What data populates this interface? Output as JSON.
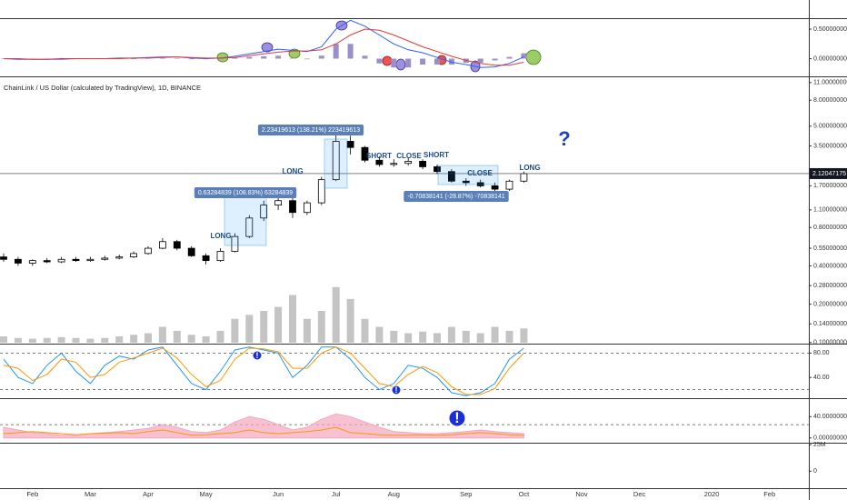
{
  "x_axis": {
    "categories": [
      null,
      null,
      "Feb",
      null,
      null,
      null,
      "Mar",
      null,
      null,
      null,
      "Apr",
      null,
      null,
      null,
      "May",
      null,
      null,
      null,
      null,
      "Jun",
      null,
      null,
      null,
      "Jul",
      null,
      null,
      null,
      "Aug",
      null,
      null,
      null,
      null,
      "Sep",
      null,
      null,
      null,
      "Oct",
      null,
      null,
      null,
      "Nov",
      null,
      null,
      null,
      "Dec",
      null,
      null,
      null,
      null,
      "2020",
      null,
      null,
      null,
      "Feb",
      null,
      null
    ]
  },
  "chart_data": [
    {
      "type": "macd",
      "ylim": [
        -0.3,
        0.67
      ],
      "yticks": [
        {
          "value": 0.5,
          "label": "0.50000000"
        },
        {
          "value": 0,
          "label": "0.00000000"
        }
      ],
      "series": [
        {
          "kind": "histogram",
          "color": "#9b8fc9",
          "values": [
            0,
            -0.01,
            0,
            0,
            0.01,
            0,
            0,
            0,
            0.01,
            0,
            0.01,
            0.01,
            0,
            -0.01,
            -0.01,
            0,
            0.02,
            0.03,
            0.04,
            0.05,
            0.01,
            -0.01,
            0.05,
            0.25,
            0.25,
            0.05,
            -0.08,
            -0.15,
            -0.15,
            -0.1,
            -0.1,
            -0.1,
            -0.07,
            -0.07,
            -0.03,
            0.03,
            0.09,
            null,
            null,
            null,
            null,
            null,
            null,
            null,
            null,
            null,
            null,
            null,
            null,
            null,
            null,
            null,
            null,
            null,
            null,
            null
          ]
        },
        {
          "kind": "line",
          "color": "#2962ff",
          "values": [
            0,
            -0.01,
            -0.01,
            -0.01,
            0,
            0,
            0,
            0,
            0.01,
            0.01,
            0.02,
            0.03,
            0.03,
            0.01,
            0,
            0.01,
            0.04,
            0.08,
            0.12,
            0.16,
            0.14,
            0.12,
            0.2,
            0.5,
            0.65,
            0.55,
            0.4,
            0.25,
            0.15,
            0.1,
            0.02,
            -0.06,
            -0.1,
            -0.15,
            -0.14,
            -0.08,
            0.03,
            null,
            null,
            null,
            null,
            null,
            null,
            null,
            null,
            null,
            null,
            null,
            null,
            null,
            null,
            null,
            null,
            null,
            null,
            null
          ]
        },
        {
          "kind": "line",
          "color": "#e53935",
          "values": [
            0,
            0,
            -0.01,
            -0.01,
            -0.01,
            0,
            0,
            0,
            0,
            0.01,
            0.01,
            0.02,
            0.03,
            0.02,
            0.01,
            0.01,
            0.02,
            0.05,
            0.08,
            0.11,
            0.13,
            0.13,
            0.15,
            0.25,
            0.4,
            0.5,
            0.48,
            0.4,
            0.3,
            0.2,
            0.12,
            0.04,
            -0.03,
            -0.08,
            -0.11,
            -0.11,
            -0.06,
            null,
            null,
            null,
            null,
            null,
            null,
            null,
            null,
            null,
            null,
            null,
            null,
            null,
            null,
            null,
            null,
            null,
            null,
            null
          ]
        }
      ]
    },
    {
      "type": "candlestick",
      "title": "ChainLink / US Dollar (calculated by TradingView), 1D, BINANCE",
      "log_scale": true,
      "ylim": [
        0.098,
        12.1
      ],
      "yticks": [
        {
          "value": 11,
          "label": "11.00000000"
        },
        {
          "value": 8,
          "label": "8.00000000"
        },
        {
          "value": 5,
          "label": "5.00000000"
        },
        {
          "value": 3.5,
          "label": "3.50000000"
        },
        {
          "value": 1.7,
          "label": "1.70000000"
        },
        {
          "value": 1.1,
          "label": "1.10000000"
        },
        {
          "value": 0.8,
          "label": "0.80000000"
        },
        {
          "value": 0.55,
          "label": "0.55000000"
        },
        {
          "value": 0.4,
          "label": "0.40000000"
        },
        {
          "value": 0.28,
          "label": "0.28000000"
        },
        {
          "value": 0.2,
          "label": "0.20000000"
        },
        {
          "value": 0.14,
          "label": "0.14000000"
        },
        {
          "value": 0.1,
          "label": "0.10000000"
        }
      ],
      "color_up": "#ffffff",
      "color_down": "#000000",
      "open": [
        0.47,
        0.45,
        0.42,
        0.44,
        0.43,
        0.45,
        0.44,
        0.45,
        0.46,
        0.47,
        0.5,
        0.55,
        0.62,
        0.55,
        0.48,
        0.44,
        0.52,
        0.68,
        0.95,
        1.2,
        1.3,
        1.05,
        1.25,
        1.9,
        3.8,
        3.4,
        2.7,
        2.5,
        2.55,
        2.65,
        2.4,
        2.2,
        1.85,
        1.8,
        1.7,
        1.6,
        1.85,
        null,
        null,
        null,
        null,
        null,
        null,
        null,
        null,
        null,
        null,
        null,
        null,
        null,
        null,
        null,
        null,
        null,
        null,
        null
      ],
      "high": [
        0.5,
        0.47,
        0.45,
        0.46,
        0.47,
        0.47,
        0.47,
        0.48,
        0.49,
        0.52,
        0.57,
        0.66,
        0.64,
        0.57,
        0.5,
        0.55,
        0.72,
        1,
        1.3,
        1.5,
        1.4,
        1.3,
        2,
        4.4,
        4.2,
        3.5,
        2.9,
        2.75,
        2.8,
        2.75,
        2.5,
        2.3,
        1.95,
        1.9,
        1.8,
        1.9,
        2.2,
        null,
        null,
        null,
        null,
        null,
        null,
        null,
        null,
        null,
        null,
        null,
        null,
        null,
        null,
        null,
        null,
        null,
        null,
        null
      ],
      "low": [
        0.43,
        0.4,
        0.4,
        0.42,
        0.42,
        0.43,
        0.43,
        0.44,
        0.45,
        0.46,
        0.49,
        0.54,
        0.53,
        0.47,
        0.41,
        0.43,
        0.51,
        0.66,
        0.9,
        1.1,
        0.95,
        1,
        1.2,
        1.85,
        3,
        2.6,
        2.4,
        2.4,
        2.45,
        2.3,
        2.1,
        1.8,
        1.7,
        1.65,
        1.5,
        1.55,
        1.8,
        null,
        null,
        null,
        null,
        null,
        null,
        null,
        null,
        null,
        null,
        null,
        null,
        null,
        null,
        null,
        null,
        null,
        null,
        null
      ],
      "close": [
        0.45,
        0.42,
        0.44,
        0.43,
        0.45,
        0.44,
        0.45,
        0.46,
        0.47,
        0.5,
        0.55,
        0.62,
        0.55,
        0.48,
        0.44,
        0.52,
        0.68,
        0.95,
        1.2,
        1.3,
        1.05,
        1.25,
        1.9,
        3.8,
        3.4,
        2.7,
        2.5,
        2.55,
        2.65,
        2.4,
        2.2,
        1.85,
        1.8,
        1.7,
        1.6,
        1.85,
        2.12,
        null,
        null,
        null,
        null,
        null,
        null,
        null,
        null,
        null,
        null,
        null,
        null,
        null,
        null,
        null,
        null,
        null,
        null,
        null
      ],
      "volume": {
        "color": "#b5b5b5",
        "ylim": [
          0,
          80000000
        ],
        "values": [
          8000000,
          6000000,
          5000000,
          6000000,
          7000000,
          6000000,
          5000000,
          6000000,
          8000000,
          10000000,
          12000000,
          20000000,
          15000000,
          10000000,
          8000000,
          15000000,
          30000000,
          35000000,
          40000000,
          45000000,
          60000000,
          30000000,
          40000000,
          70000000,
          55000000,
          30000000,
          20000000,
          15000000,
          12000000,
          14000000,
          12000000,
          20000000,
          15000000,
          12000000,
          20000000,
          15000000,
          18000000,
          null,
          null,
          null,
          null,
          null,
          null,
          null,
          null,
          null,
          null,
          null,
          null,
          null,
          null,
          null,
          null,
          null,
          null,
          null
        ]
      },
      "last_price": 2.12047175,
      "annotations": [
        "LONG",
        "LONG",
        "SHORT",
        "CLOSE",
        "SHORT",
        "CLOSE",
        "LONG",
        "?"
      ],
      "measurements": [
        "0.63284839 (108.83%) 63284839",
        "2.23419613 (138.21%) 223419613",
        "-0.70838141 (-28.87%) -70838141"
      ]
    },
    {
      "type": "line",
      "ylim": [
        6,
        94
      ],
      "yticks": [
        {
          "value": 80,
          "label": "80.00"
        },
        {
          "value": 40,
          "label": "40.00"
        }
      ],
      "bands": [
        80,
        20
      ],
      "annotations": [
        "!",
        "!"
      ],
      "series": [
        {
          "color": "#2196f3",
          "values": [
            70,
            40,
            30,
            60,
            80,
            50,
            30,
            60,
            75,
            70,
            85,
            90,
            60,
            30,
            20,
            50,
            85,
            90,
            85,
            80,
            40,
            60,
            90,
            90,
            70,
            40,
            20,
            30,
            60,
            55,
            40,
            15,
            10,
            15,
            30,
            70,
            88,
            null,
            null,
            null,
            null,
            null,
            null,
            null,
            null,
            null,
            null,
            null,
            null,
            null,
            null,
            null,
            null,
            null,
            null,
            null
          ]
        },
        {
          "color": "#ff9800",
          "values": [
            60,
            55,
            35,
            45,
            70,
            65,
            40,
            45,
            65,
            72,
            80,
            88,
            72,
            45,
            25,
            35,
            70,
            88,
            87,
            82,
            55,
            55,
            80,
            90,
            80,
            55,
            30,
            25,
            45,
            58,
            48,
            25,
            12,
            12,
            22,
            55,
            80,
            null,
            null,
            null,
            null,
            null,
            null,
            null,
            null,
            null,
            null,
            null,
            null,
            null,
            null,
            null,
            null,
            null,
            null,
            null
          ]
        }
      ]
    },
    {
      "type": "line",
      "ylim": [
        -9,
        73
      ],
      "yticks": [
        {
          "value": 40,
          "label": "40.00000000"
        },
        {
          "value": 0,
          "label": "0.00000000"
        }
      ],
      "bands": [
        25
      ],
      "annotations": [
        "!"
      ],
      "series": [
        {
          "area": true,
          "color": "#f4a7bd",
          "values": [
            20,
            15,
            10,
            8,
            5,
            5,
            8,
            10,
            12,
            15,
            18,
            25,
            20,
            12,
            10,
            15,
            30,
            40,
            35,
            25,
            15,
            20,
            35,
            45,
            40,
            30,
            20,
            12,
            10,
            8,
            8,
            10,
            12,
            15,
            12,
            10,
            8,
            null,
            null,
            null,
            null,
            null,
            null,
            null,
            null,
            null,
            null,
            null,
            null,
            null,
            null,
            null,
            null,
            null,
            null,
            null
          ]
        },
        {
          "color": "#ff9800",
          "values": [
            8,
            10,
            12,
            10,
            8,
            6,
            8,
            9,
            10,
            8,
            12,
            15,
            10,
            5,
            6,
            8,
            10,
            15,
            10,
            8,
            10,
            12,
            15,
            20,
            10,
            8,
            6,
            5,
            5,
            6,
            5,
            6,
            8,
            10,
            8,
            6,
            5,
            null,
            null,
            null,
            null,
            null,
            null,
            null,
            null,
            null,
            null,
            null,
            null,
            null,
            null,
            null,
            null,
            null,
            null,
            null
          ]
        }
      ]
    },
    {
      "type": "axis",
      "ylim": [
        -16000000,
        26000000
      ],
      "yticks": [
        {
          "value": 25000000,
          "label": "25M"
        },
        0
      ]
    }
  ]
}
